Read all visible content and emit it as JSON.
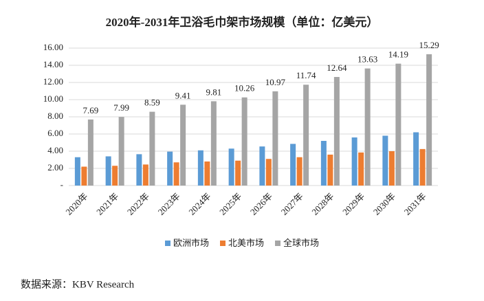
{
  "chart_data": {
    "type": "bar",
    "title": "2020年-2031年卫浴毛巾架市场规模（单位：亿美元）",
    "categories": [
      "2020年",
      "2021年",
      "2022年",
      "2023年",
      "2024年",
      "2025年",
      "2026年",
      "2027年",
      "2028年",
      "2029年",
      "2030年",
      "2031年"
    ],
    "series": [
      {
        "name": "欧洲市场",
        "color": "#5b9bd5",
        "values": [
          3.3,
          3.4,
          3.65,
          3.95,
          4.1,
          4.3,
          4.55,
          4.85,
          5.2,
          5.6,
          5.8,
          6.2
        ]
      },
      {
        "name": "北美市场",
        "color": "#ed7d31",
        "values": [
          2.2,
          2.3,
          2.45,
          2.7,
          2.8,
          2.9,
          3.1,
          3.3,
          3.6,
          3.85,
          4.0,
          4.25
        ]
      },
      {
        "name": "全球市场",
        "color": "#a5a5a5",
        "values": [
          7.69,
          7.99,
          8.59,
          9.41,
          9.81,
          10.26,
          10.97,
          11.74,
          12.64,
          13.63,
          14.19,
          15.29
        ]
      }
    ],
    "ylim": [
      0,
      16
    ],
    "yticks": [
      {
        "value": 0,
        "label": "-"
      },
      {
        "value": 2,
        "label": "2.00"
      },
      {
        "value": 4,
        "label": "4.00"
      },
      {
        "value": 6,
        "label": "6.00"
      },
      {
        "value": 8,
        "label": "8.00"
      },
      {
        "value": 10,
        "label": "10.00"
      },
      {
        "value": 12,
        "label": "12.00"
      },
      {
        "value": 14,
        "label": "14.00"
      },
      {
        "value": 16,
        "label": "16.00"
      }
    ],
    "grid": true,
    "legend": "bottom",
    "source": "数据来源：KBV Research"
  }
}
